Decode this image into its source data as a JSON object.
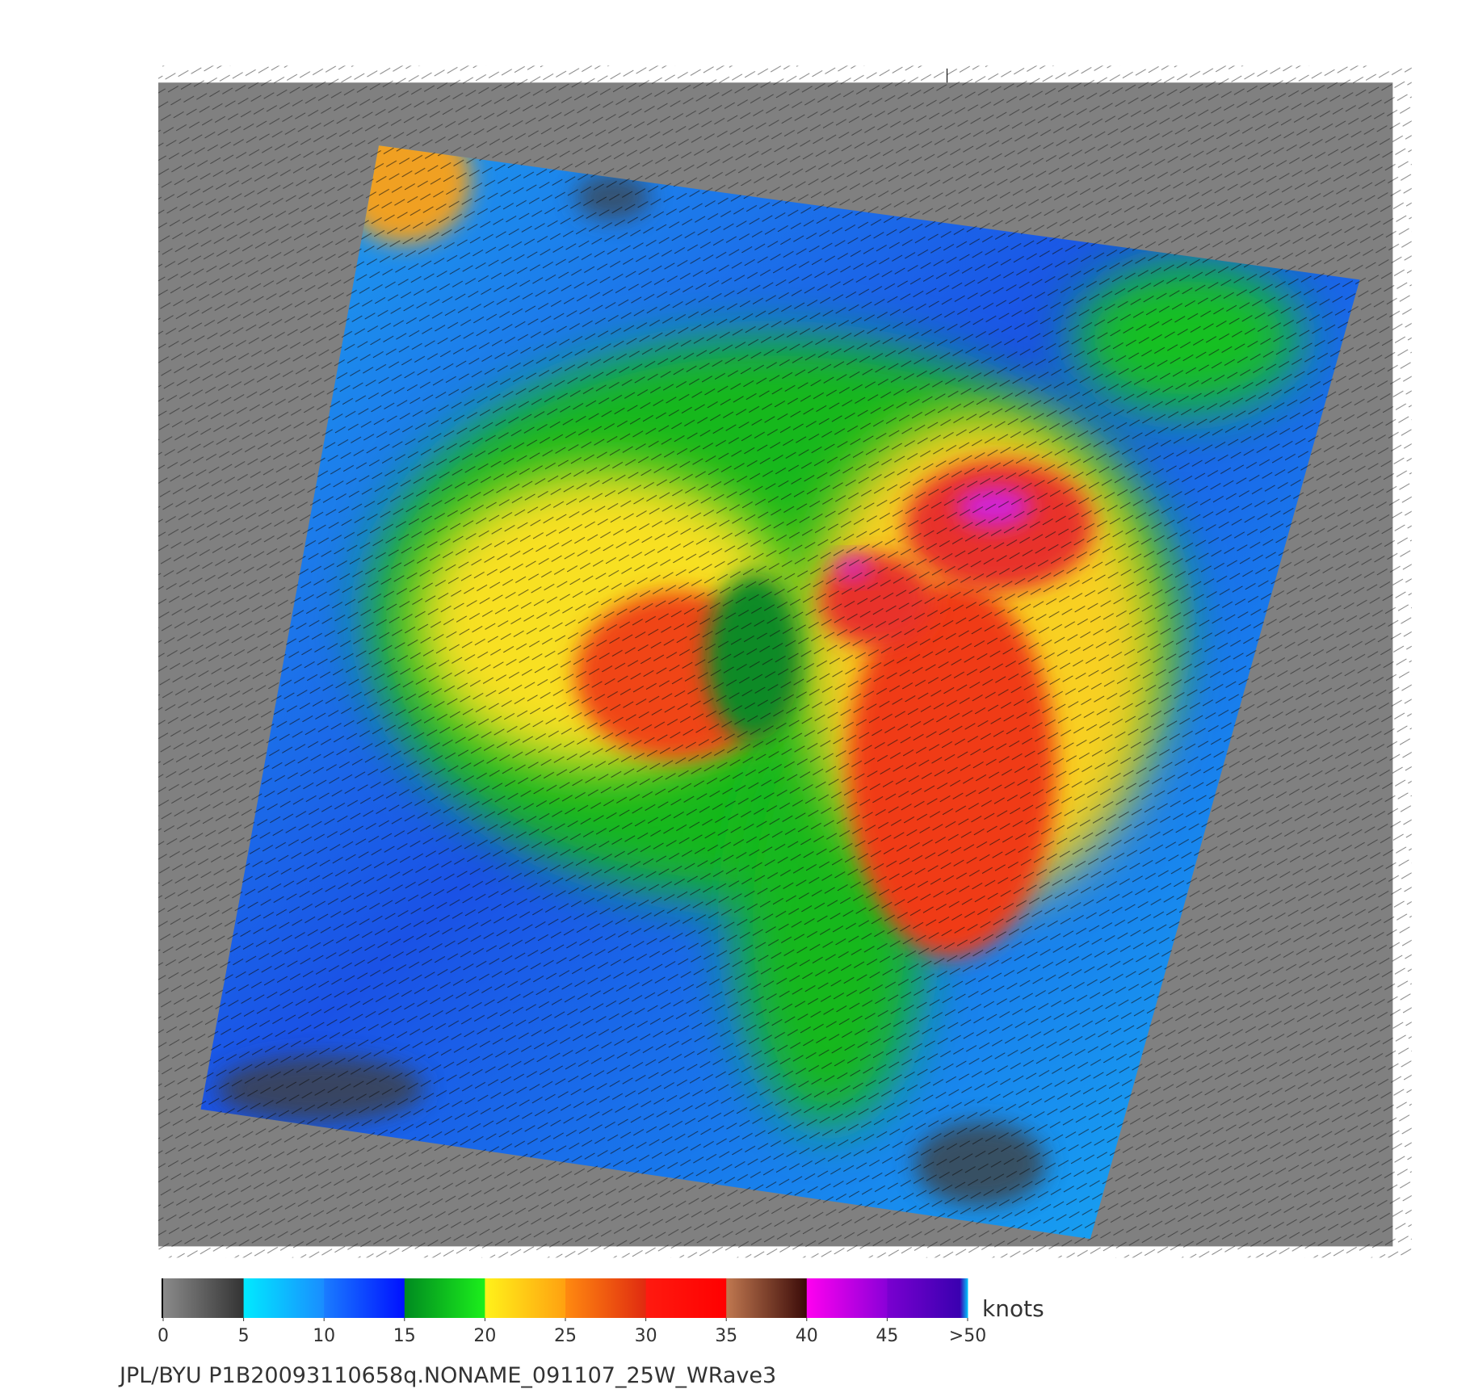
{
  "colorbar": {
    "ticks": [
      0,
      5,
      10,
      15,
      20,
      25,
      30,
      35,
      40,
      45,
      {
        "value": 50,
        "label": ">50"
      }
    ],
    "unit": "knots"
  },
  "caption": "JPL/BYU  P1B20093110658q.NONAME_091107_25W_WRave3"
}
